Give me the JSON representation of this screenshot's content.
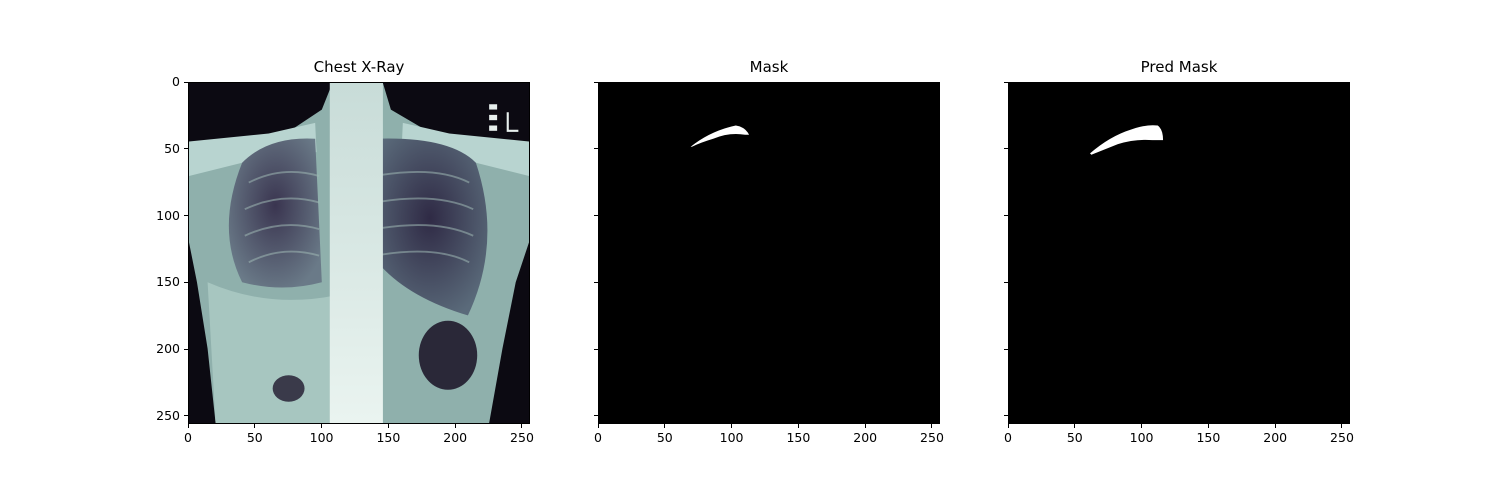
{
  "figure": {
    "panels": [
      {
        "id": "xray",
        "title": "Chest X-Ray",
        "image": "chest-xray-image",
        "show_ylabels": true
      },
      {
        "id": "mask",
        "title": "Mask",
        "image": "ground-truth-mask-image",
        "show_ylabels": false
      },
      {
        "id": "pred",
        "title": "Pred Mask",
        "image": "predicted-mask-image",
        "show_ylabels": false
      }
    ],
    "x_ticks": [
      "0",
      "50",
      "100",
      "150",
      "200",
      "250"
    ],
    "y_ticks": [
      "0",
      "50",
      "100",
      "150",
      "200",
      "250"
    ],
    "axis_range": [
      0,
      256
    ],
    "colors": {
      "background": "#ffffff",
      "mask_bg": "#000000",
      "mask_fg": "#ffffff",
      "xray_tint": "#a8c8c0"
    }
  }
}
